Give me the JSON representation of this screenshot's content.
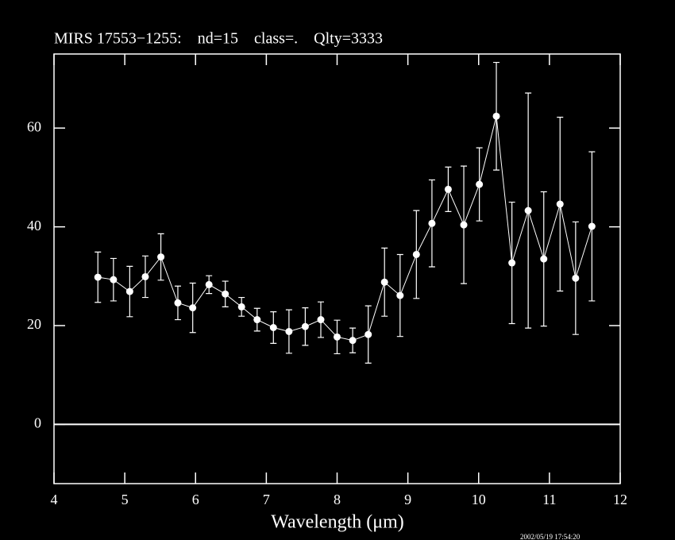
{
  "chart_data": {
    "type": "errorbar-line",
    "title": "MIRS 17553−1255:    nd=15    class=.    Qlty=3333",
    "x_label": "Wavelength (μm)",
    "timestamp": "2002/05/19 17:54:20",
    "color": "#ffffff",
    "xlim": [
      4,
      12
    ],
    "xticks": [
      4,
      5,
      6,
      7,
      8,
      9,
      10,
      11,
      12
    ],
    "ylim": [
      -12,
      75
    ],
    "yticks": [
      0,
      20,
      40,
      60
    ],
    "x": [
      4.62,
      4.84,
      5.07,
      5.29,
      5.51,
      5.75,
      5.96,
      6.19,
      6.42,
      6.65,
      6.87,
      7.1,
      7.32,
      7.55,
      7.77,
      8.0,
      8.22,
      8.44,
      8.67,
      8.89,
      9.12,
      9.34,
      9.57,
      9.79,
      10.01,
      10.25,
      10.47,
      10.7,
      10.92,
      11.15,
      11.37,
      11.6
    ],
    "values": [
      29.8,
      29.3,
      26.9,
      29.9,
      33.9,
      24.6,
      23.6,
      28.3,
      26.4,
      23.8,
      21.2,
      19.6,
      18.8,
      19.8,
      21.2,
      17.7,
      17.0,
      18.2,
      28.8,
      26.1,
      34.4,
      40.7,
      47.6,
      40.4,
      48.6,
      62.4,
      32.7,
      43.3,
      33.5,
      44.6,
      29.6,
      40.1
    ],
    "errors": [
      5.1,
      4.3,
      5.1,
      4.2,
      4.7,
      3.4,
      5.0,
      1.8,
      2.6,
      1.9,
      2.3,
      3.2,
      4.4,
      3.8,
      3.6,
      3.4,
      2.5,
      5.8,
      6.9,
      8.3,
      8.9,
      8.8,
      4.5,
      11.9,
      7.4,
      10.9,
      12.3,
      23.8,
      13.6,
      17.6,
      11.4,
      15.1
    ]
  }
}
